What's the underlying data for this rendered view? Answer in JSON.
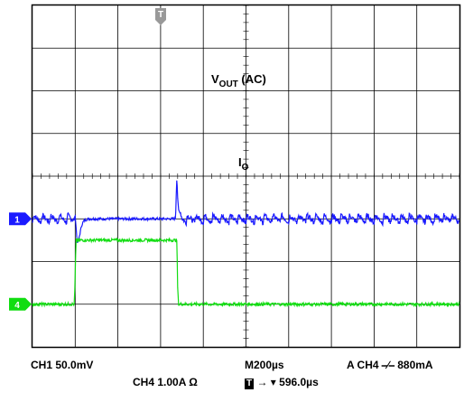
{
  "chart_data": {
    "type": "line",
    "divisions": {
      "x": 10,
      "y": 8
    },
    "trigger_marker": "T",
    "annotations": {
      "vout": {
        "main": "V",
        "sub": "OUT",
        "suffix": " (AC)"
      },
      "io": {
        "main": "I",
        "sub": "O"
      }
    },
    "series": [
      {
        "channel_marker": "1",
        "color": "#1a1aff",
        "marker_division": 3.0,
        "baseline_division": 3.0,
        "load_step_start_division": 1.0,
        "load_step_end_division": 3.4,
        "x": [
          0.0,
          0.95,
          1.0,
          1.02,
          1.05,
          1.1,
          1.15,
          1.2,
          1.3,
          1.5,
          3.35,
          3.38,
          3.4,
          3.42,
          3.45,
          3.5,
          10.0
        ],
        "y": [
          3.0,
          3.0,
          3.1,
          2.8,
          2.4,
          2.6,
          2.85,
          2.95,
          3.0,
          3.0,
          3.0,
          4.0,
          3.5,
          3.2,
          3.15,
          3.0,
          3.0
        ],
        "y_unit": "div (50.0mV/div)"
      },
      {
        "channel_marker": "4",
        "color": "#11dd11",
        "marker_division": 1.0,
        "x": [
          0.0,
          0.98,
          1.0,
          1.02,
          3.38,
          3.4,
          3.42,
          10.0
        ],
        "y": [
          1.0,
          1.0,
          1.7,
          2.5,
          2.5,
          1.4,
          1.0,
          1.0
        ],
        "y_unit": "div (1.00A/div)"
      }
    ]
  },
  "readout": {
    "ch1": "CH1  50.0mV",
    "ch4": "CH4  1.00A Ω",
    "timebase": "M200µs",
    "trigger": "A  CH4  ⎯∕⎯ 880mA",
    "trigger_pos_icon": "T",
    "trigger_pos_arrow": "→ ▾ 596.0µs"
  }
}
